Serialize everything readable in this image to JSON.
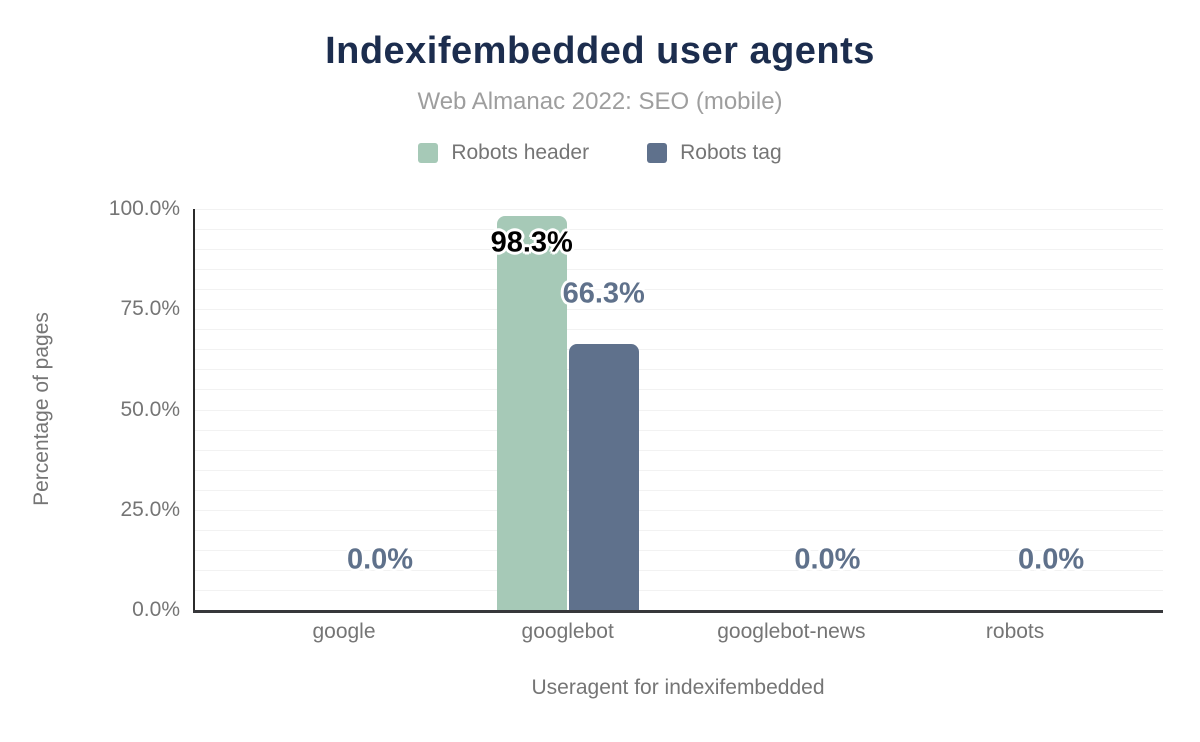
{
  "header": {
    "title": "Indexifembedded user agents",
    "subtitle": "Web Almanac 2022: SEO (mobile)"
  },
  "legend": {
    "items": [
      {
        "label": "Robots header",
        "color": "#a6c9b7"
      },
      {
        "label": "Robots tag",
        "color": "#5f718c"
      }
    ]
  },
  "axes": {
    "x": {
      "title": "Useragent for indexifembedded",
      "tick_labels": [
        "google",
        "googlebot",
        "googlebot-news",
        "robots"
      ]
    },
    "y": {
      "title": "Percentage of pages",
      "min": 0,
      "max": 100,
      "major_step": 25,
      "minor_step": 5,
      "ticks": [
        {
          "label": "0.0%",
          "value": 0
        },
        {
          "label": "25.0%",
          "value": 25
        },
        {
          "label": "50.0%",
          "value": 50
        },
        {
          "label": "75.0%",
          "value": 75
        },
        {
          "label": "100.0%",
          "value": 100
        }
      ]
    }
  },
  "chart_data": {
    "type": "bar",
    "title": "Indexifembedded user agents",
    "subtitle": "Web Almanac 2022: SEO (mobile)",
    "xlabel": "Useragent for indexifembedded",
    "ylabel": "Percentage of pages",
    "ylim": [
      0,
      100
    ],
    "grid": "horizontal-minor-5pct",
    "legend_position": "top-center",
    "categories": [
      "google",
      "googlebot",
      "googlebot-news",
      "robots"
    ],
    "series": [
      {
        "name": "Robots header",
        "color": "#a6c9b7",
        "label_color": "#000000",
        "values": [
          0.0,
          98.3,
          0.0,
          0.0
        ],
        "labels": [
          null,
          "98.3%",
          null,
          null
        ]
      },
      {
        "name": "Robots tag",
        "color": "#5f718c",
        "label_color": "#5f718b",
        "values": [
          0.0,
          66.3,
          0.0,
          0.0
        ],
        "labels": [
          "0.0%",
          "66.3%",
          "0.0%",
          "0.0%"
        ]
      }
    ]
  },
  "colors": {
    "title": "#1c2d4e",
    "subtitle": "#9e9e9e",
    "axis_text": "#757575",
    "grid_line": "#f2f2f2",
    "axis_line_left": "#2b2b2b",
    "axis_line_bottom": "#37383b"
  }
}
